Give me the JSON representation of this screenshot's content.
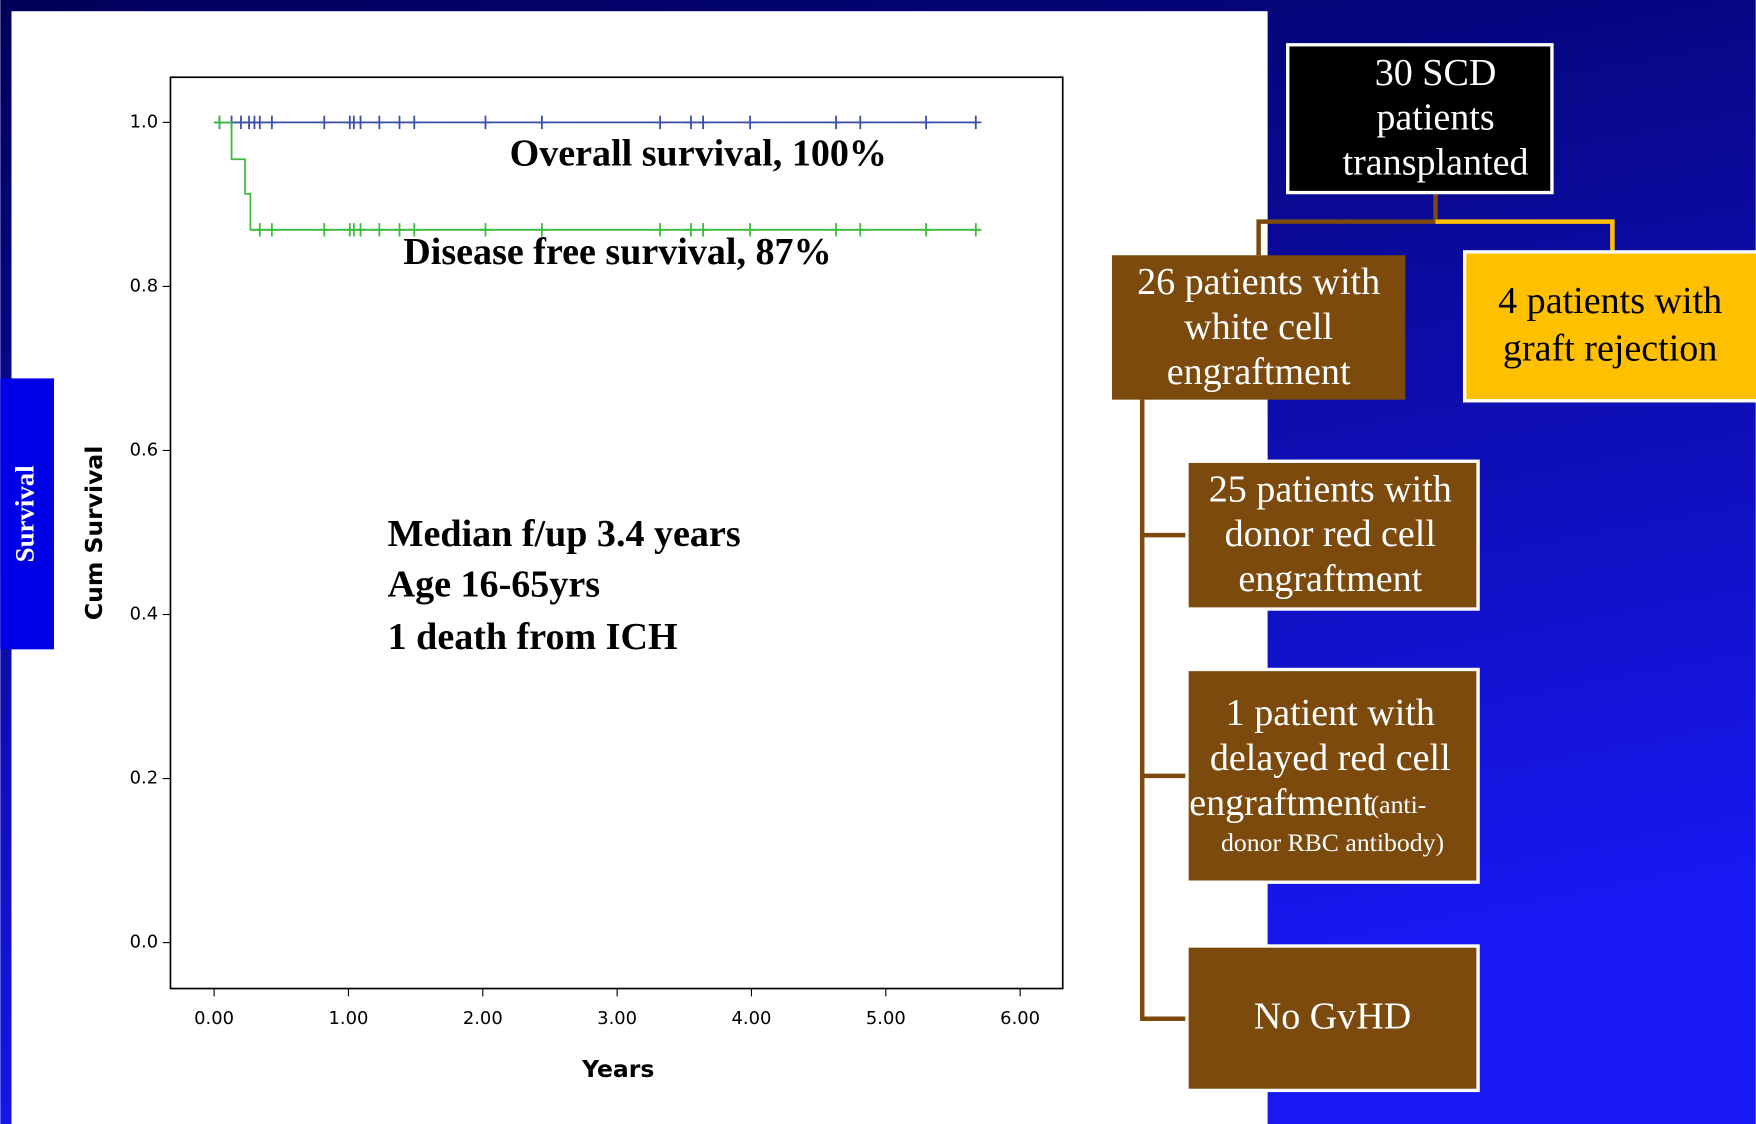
{
  "chart_data": {
    "type": "line",
    "x_label": "Years",
    "y_label": "Cum Survival",
    "xlim": [
      -0.325,
      6.317
    ],
    "ylim": [
      -0.056,
      1.055
    ],
    "xticks": [
      {
        "value": 0,
        "label": "0.00"
      },
      {
        "value": 1,
        "label": "1.00"
      },
      {
        "value": 2,
        "label": "2.00"
      },
      {
        "value": 3,
        "label": "3.00"
      },
      {
        "value": 4,
        "label": "4.00"
      },
      {
        "value": 5,
        "label": "5.00"
      },
      {
        "value": 6,
        "label": "6.00"
      }
    ],
    "yticks": [
      {
        "value": 0,
        "label": "0.0"
      },
      {
        "value": 0.2,
        "label": "0.2"
      },
      {
        "value": 0.4,
        "label": "0.4"
      },
      {
        "value": 0.6,
        "label": "0.6"
      },
      {
        "value": 0.8,
        "label": "0.8"
      },
      {
        "value": 1,
        "label": "1.0"
      }
    ],
    "annotations": [
      "Overall survival, 100%",
      "Disease free survival, 87%",
      "Median f/up 3.4 years",
      "Age 16-65yrs",
      "1 death from ICH"
    ],
    "series": [
      {
        "color": "#3a4fa8",
        "x": [
          0,
          5.68
        ],
        "values": [
          1,
          1
        ],
        "censored": {
          "x": [
            0.04,
            0.13,
            0.2,
            0.26,
            0.3,
            0.34,
            0.43,
            0.82,
            1.01,
            1.04,
            1.09,
            1.23,
            1.38,
            1.49,
            2.02,
            2.44,
            3.32,
            3.55,
            3.64,
            3.99,
            4.63,
            4.81,
            5.3,
            5.67
          ],
          "values": [
            1,
            1,
            1,
            1,
            1,
            1,
            1,
            1,
            1,
            1,
            1,
            1,
            1,
            1,
            1,
            1,
            1,
            1,
            1,
            1,
            1,
            1,
            1,
            1
          ]
        }
      },
      {
        "color": "#3cbc3c",
        "x": [
          0,
          0.13,
          0.13,
          0.23,
          0.23,
          0.27,
          0.27,
          5.68
        ],
        "values": [
          1,
          1,
          0.955,
          0.955,
          0.913,
          0.913,
          0.869,
          0.869
        ],
        "censored": {
          "x": [
            0.04,
            0.34,
            0.43,
            0.82,
            1.01,
            1.04,
            1.09,
            1.23,
            1.38,
            1.49,
            2.02,
            2.44,
            3.32,
            3.55,
            3.64,
            3.99,
            4.63,
            4.81,
            5.3,
            5.67
          ],
          "values": [
            1,
            0.869,
            0.869,
            0.869,
            0.869,
            0.869,
            0.869,
            0.869,
            0.869,
            0.869,
            0.869,
            0.869,
            0.869,
            0.869,
            0.869,
            0.869,
            0.869,
            0.869,
            0.869,
            0.869
          ]
        }
      }
    ]
  },
  "side_label": "Survival",
  "diagram": {
    "nodes": [
      {
        "lines": [
          "30 SCD",
          "patients",
          "transplanted"
        ]
      },
      {
        "lines": [
          "26 patients with",
          "white cell",
          "engraftment"
        ]
      },
      {
        "lines": [
          "4 patients with",
          "graft rejection"
        ]
      },
      {
        "lines": [
          "25 patients with",
          "donor red cell",
          "engraftment"
        ]
      },
      {
        "lines": [
          "1 patient with",
          "delayed red cell",
          "engraftment"
        ],
        "note_lines": [
          "(anti-",
          "donor RBC antibody)"
        ]
      },
      {
        "lines": [
          "No GvHD"
        ]
      }
    ]
  }
}
